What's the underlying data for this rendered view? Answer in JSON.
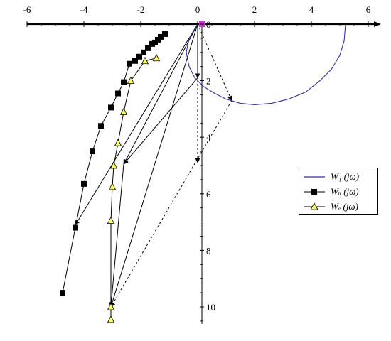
{
  "chart_data": {
    "type": "scatter",
    "xlim": [
      -6,
      6
    ],
    "ylim": [
      -10.5,
      0
    ],
    "grid": false,
    "legend_position": "right",
    "x_ticks": [
      -6,
      -4,
      -2,
      0,
      2,
      4,
      6
    ],
    "y_ticks": [
      0,
      -2,
      -4,
      -6,
      -8,
      -10
    ],
    "y_tick_labels": [
      "0",
      "2",
      "4",
      "6",
      "8",
      "10"
    ],
    "series": [
      {
        "name": "W₁ (jω)",
        "marker": "none",
        "color": "#333399",
        "x": [
          5.2,
          5.15,
          5.0,
          4.7,
          4.3,
          3.8,
          3.2,
          2.6,
          2.0,
          1.5,
          1.0,
          0.6,
          0.2,
          -0.1,
          -0.3,
          -0.4,
          -0.3,
          0.0
        ],
        "y": [
          0.0,
          -0.6,
          -1.1,
          -1.6,
          -2.0,
          -2.4,
          -2.65,
          -2.8,
          -2.85,
          -2.8,
          -2.65,
          -2.45,
          -2.2,
          -1.9,
          -1.5,
          -1.0,
          -0.5,
          0.0
        ]
      },
      {
        "name": "Wᵢᵢ (jω)",
        "marker": "square",
        "color": "#000000",
        "x": [
          -4.75,
          -4.3,
          -4.0,
          -3.7,
          -3.4,
          -3.05,
          -2.8,
          -2.6,
          -2.4,
          -2.2,
          -2.05,
          -1.9,
          -1.75,
          -1.6,
          -1.5,
          -1.4,
          -1.3,
          -1.15
        ],
        "y": [
          -9.5,
          -7.2,
          -5.65,
          -4.5,
          -3.6,
          -2.95,
          -2.45,
          -2.05,
          -1.4,
          -1.3,
          -1.15,
          -1.0,
          -0.85,
          -0.7,
          -0.65,
          -0.55,
          -0.45,
          -0.35
        ]
      },
      {
        "name": "Wₑ (jω)",
        "marker": "triangle",
        "color": "#000000",
        "x": [
          -3.05,
          -3.05,
          -3.05,
          -3.0,
          -2.95,
          -2.8,
          -2.6,
          -2.35,
          -1.85,
          -1.45
        ],
        "y": [
          -10.45,
          -10.0,
          -6.95,
          -5.75,
          -5.0,
          -4.2,
          -3.1,
          -2.0,
          -1.3,
          -1.2
        ]
      }
    ],
    "vectors": [
      {
        "from": [
          0,
          0
        ],
        "to": [
          0,
          -1.9
        ],
        "style": "solid"
      },
      {
        "from": [
          0,
          0
        ],
        "to": [
          -2.6,
          -4.95
        ],
        "style": "solid"
      },
      {
        "from": [
          0,
          0
        ],
        "to": [
          -4.3,
          -7.1
        ],
        "style": "solid"
      },
      {
        "from": [
          0,
          0
        ],
        "to": [
          -3.05,
          -10.0
        ],
        "style": "solid"
      },
      {
        "from": [
          0,
          0
        ],
        "to": [
          1.2,
          -2.7
        ],
        "style": "dashed"
      },
      {
        "from": [
          0,
          0
        ],
        "to": [
          0,
          -4.9
        ],
        "style": "dashed"
      },
      {
        "from": [
          0,
          -1.9
        ],
        "to": [
          -2.6,
          -4.95
        ],
        "style": "solid"
      },
      {
        "from": [
          1.2,
          -2.7
        ],
        "to": [
          -3.05,
          -10.0
        ],
        "style": "dashed"
      },
      {
        "from": [
          -2.6,
          -4.95
        ],
        "to": [
          -3.05,
          -10.0
        ],
        "style": "solid"
      }
    ]
  }
}
